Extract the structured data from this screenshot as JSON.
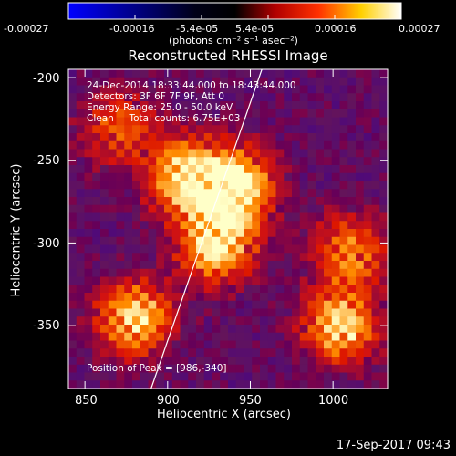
{
  "colorbar": {
    "units_label": "(photons cm⁻² s⁻¹ asec⁻²)",
    "tick_labels": [
      "-0.00027",
      "-0.00016",
      "-5.4e-05",
      "5.4e-05",
      "0.00016",
      "0.00027"
    ],
    "min": -0.00027,
    "max": 0.00027,
    "colors": [
      "#0000ff",
      "#000000",
      "#ff0000",
      "#ffff00",
      "#ffffff"
    ]
  },
  "chart_data": {
    "type": "heatmap",
    "title": "Reconstructed RHESSI Image",
    "xlabel": "Heliocentric X (arcsec)",
    "ylabel": "Heliocentric Y (arcsec)",
    "xlim": [
      840,
      1033
    ],
    "ylim": [
      -388,
      -195
    ],
    "x_ticks": [
      850,
      900,
      950,
      1000
    ],
    "y_ticks": [
      -200,
      -250,
      -300,
      -350
    ],
    "x_tick_labels": [
      "850",
      "900",
      "950",
      "1000"
    ],
    "y_tick_labels": [
      "-200",
      "-250",
      "-300",
      "-350"
    ],
    "limb_line": [
      [
        890,
        -388
      ],
      [
        957,
        -195
      ]
    ],
    "hot_regions": [
      {
        "x": 910,
        "y": -260,
        "intensity": 0.9
      },
      {
        "x": 942,
        "y": -265,
        "intensity": 1.0
      },
      {
        "x": 930,
        "y": -300,
        "intensity": 0.95
      },
      {
        "x": 880,
        "y": -345,
        "intensity": 0.85
      },
      {
        "x": 1005,
        "y": -350,
        "intensity": 0.85
      },
      {
        "x": 1010,
        "y": -305,
        "intensity": 0.6
      },
      {
        "x": 870,
        "y": -230,
        "intensity": 0.5
      }
    ]
  },
  "annotations": {
    "line1": "24-Dec-2014 18:33:44.000 to 18:43:44.000",
    "line2": "Detectors: 3F 6F 7F 9F, Att 0",
    "line3": "Energy Range: 25.0 - 50.0 keV",
    "line4": "Clean     Total counts: 6.75E+03",
    "peak": "Position of Peak = [986,-340]"
  },
  "footer": {
    "date": "17-Sep-2017 09:43"
  }
}
